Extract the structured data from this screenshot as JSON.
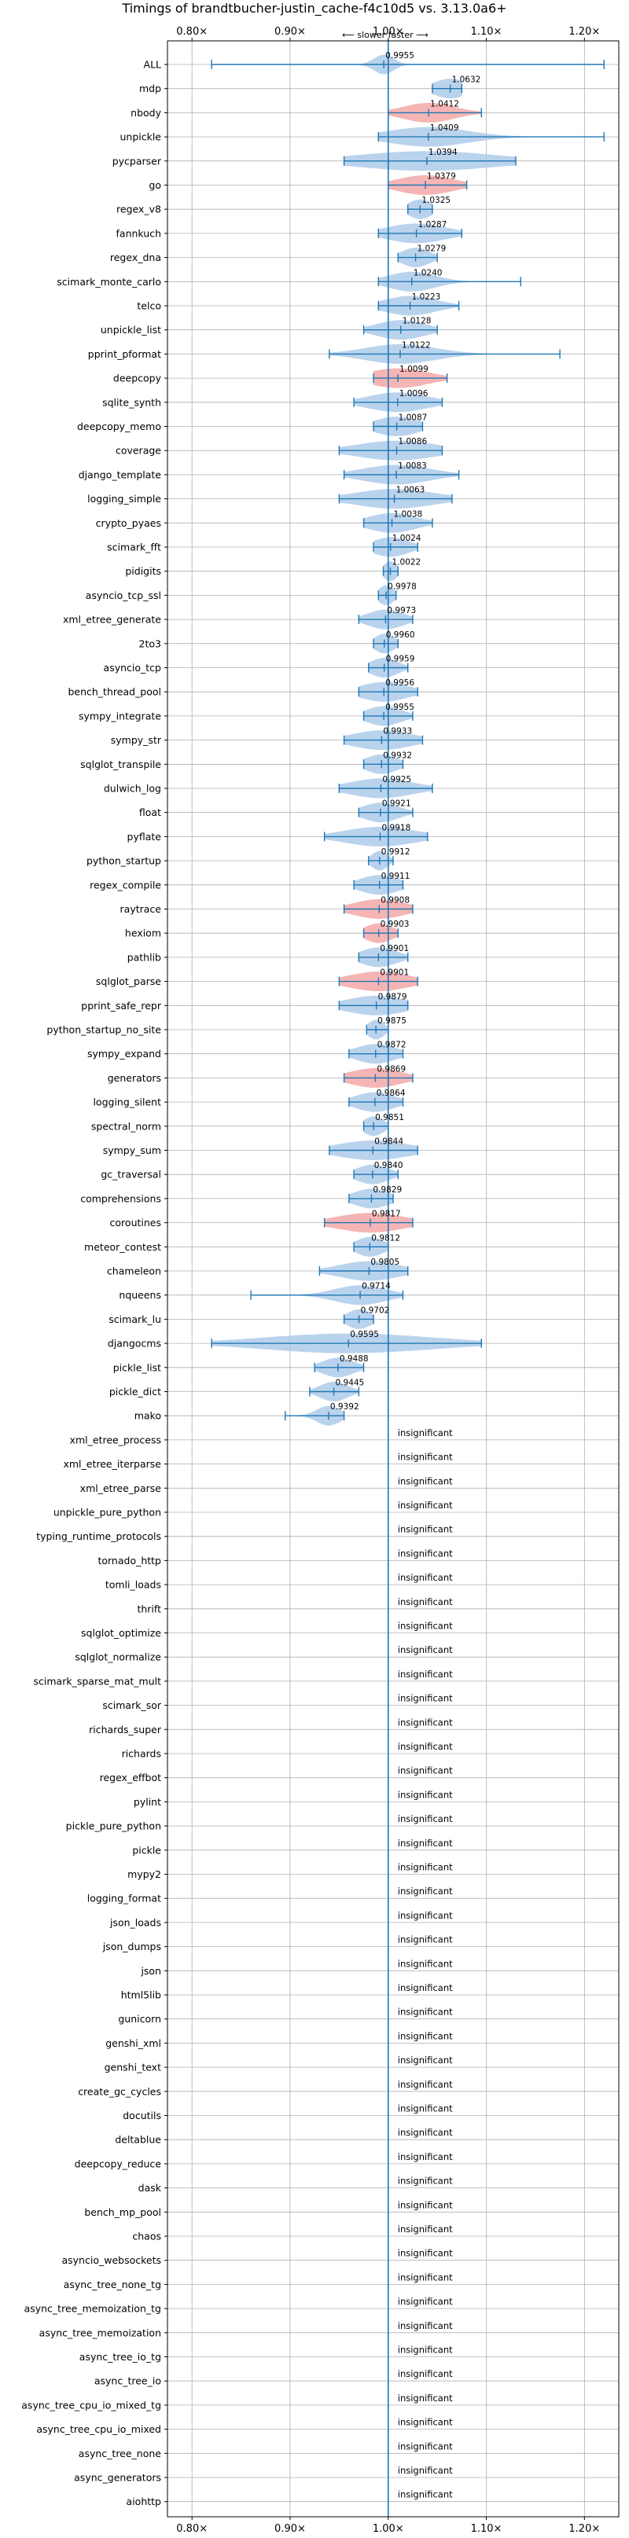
{
  "chart_data": {
    "type": "violin",
    "title": "Timings of brandtbucher-justin_cache-f4c10d5 vs. 3.13.0a6+",
    "direction_annotation": "⟵ slower    faster ⟶",
    "x_ticks": [
      0.8,
      0.9,
      1.0,
      1.1,
      1.2
    ],
    "x_tick_labels": [
      "0.80×",
      "0.90×",
      "1.00×",
      "1.10×",
      "1.20×"
    ],
    "xlim": [
      0.775,
      1.235
    ],
    "reference_line": 1.0,
    "insignificant_label": "insignificant",
    "colors": {
      "neutral": "#a9c8e8",
      "slower": "#f4a3a3",
      "line": "#1f77b4",
      "grid": "#b0b0b0"
    },
    "benchmarks": [
      {
        "name": "ALL",
        "mean": 0.9955,
        "label": "0.9955",
        "min": 0.82,
        "max": 1.22,
        "width": 0.01,
        "color": "neutral"
      },
      {
        "name": "mdp",
        "mean": 1.0632,
        "label": "1.0632",
        "min": 1.045,
        "max": 1.075,
        "width": 0.017,
        "color": "neutral"
      },
      {
        "name": "nbody",
        "mean": 1.0412,
        "label": "1.0412",
        "min": 1.0,
        "max": 1.095,
        "width": 0.026,
        "color": "slower"
      },
      {
        "name": "unpickle",
        "mean": 1.0409,
        "label": "1.0409",
        "min": 0.99,
        "max": 1.22,
        "width": 0.04,
        "color": "neutral"
      },
      {
        "name": "pycparser",
        "mean": 1.0394,
        "label": "1.0394",
        "min": 0.955,
        "max": 1.13,
        "width": 0.07,
        "color": "neutral"
      },
      {
        "name": "go",
        "mean": 1.0379,
        "label": "1.0379",
        "min": 1.0,
        "max": 1.08,
        "width": 0.028,
        "color": "slower"
      },
      {
        "name": "regex_v8",
        "mean": 1.0325,
        "label": "1.0325",
        "min": 1.02,
        "max": 1.045,
        "width": 0.012,
        "color": "neutral"
      },
      {
        "name": "fannkuch",
        "mean": 1.0287,
        "label": "1.0287",
        "min": 0.99,
        "max": 1.075,
        "width": 0.03,
        "color": "neutral"
      },
      {
        "name": "regex_dna",
        "mean": 1.0279,
        "label": "1.0279",
        "min": 1.01,
        "max": 1.05,
        "width": 0.014,
        "color": "neutral"
      },
      {
        "name": "scimark_monte_carlo",
        "mean": 1.024,
        "label": "1.0240",
        "min": 0.99,
        "max": 1.135,
        "width": 0.024,
        "color": "neutral"
      },
      {
        "name": "telco",
        "mean": 1.0223,
        "label": "1.0223",
        "min": 0.99,
        "max": 1.072,
        "width": 0.026,
        "color": "neutral"
      },
      {
        "name": "unpickle_list",
        "mean": 1.0128,
        "label": "1.0128",
        "min": 0.975,
        "max": 1.05,
        "width": 0.024,
        "color": "neutral"
      },
      {
        "name": "pprint_pformat",
        "mean": 1.0122,
        "label": "1.0122",
        "min": 0.94,
        "max": 1.175,
        "width": 0.036,
        "color": "neutral"
      },
      {
        "name": "deepcopy",
        "mean": 1.0099,
        "label": "1.0099",
        "min": 0.985,
        "max": 1.06,
        "width": 0.03,
        "color": "slower"
      },
      {
        "name": "sqlite_synth",
        "mean": 1.0096,
        "label": "1.0096",
        "min": 0.965,
        "max": 1.055,
        "width": 0.03,
        "color": "neutral"
      },
      {
        "name": "deepcopy_memo",
        "mean": 1.0087,
        "label": "1.0087",
        "min": 0.985,
        "max": 1.035,
        "width": 0.022,
        "color": "neutral"
      },
      {
        "name": "coverage",
        "mean": 1.0086,
        "label": "1.0086",
        "min": 0.95,
        "max": 1.055,
        "width": 0.04,
        "color": "neutral"
      },
      {
        "name": "django_template",
        "mean": 1.0083,
        "label": "1.0083",
        "min": 0.955,
        "max": 1.072,
        "width": 0.034,
        "color": "neutral"
      },
      {
        "name": "logging_simple",
        "mean": 1.0063,
        "label": "1.0063",
        "min": 0.95,
        "max": 1.065,
        "width": 0.04,
        "color": "neutral"
      },
      {
        "name": "crypto_pyaes",
        "mean": 1.0038,
        "label": "1.0038",
        "min": 0.975,
        "max": 1.045,
        "width": 0.024,
        "color": "neutral"
      },
      {
        "name": "scimark_fft",
        "mean": 1.0024,
        "label": "1.0024",
        "min": 0.985,
        "max": 1.03,
        "width": 0.018,
        "color": "neutral"
      },
      {
        "name": "pidigits",
        "mean": 1.0022,
        "label": "1.0022",
        "min": 0.995,
        "max": 1.01,
        "width": 0.007,
        "color": "neutral"
      },
      {
        "name": "asyncio_tcp_ssl",
        "mean": 0.9978,
        "label": "0.9978",
        "min": 0.99,
        "max": 1.008,
        "width": 0.008,
        "color": "neutral"
      },
      {
        "name": "xml_etree_generate",
        "mean": 0.9973,
        "label": "0.9973",
        "min": 0.97,
        "max": 1.025,
        "width": 0.018,
        "color": "neutral"
      },
      {
        "name": "2to3",
        "mean": 0.996,
        "label": "0.9960",
        "min": 0.985,
        "max": 1.01,
        "width": 0.01,
        "color": "neutral"
      },
      {
        "name": "asyncio_tcp",
        "mean": 0.9959,
        "label": "0.9959",
        "min": 0.98,
        "max": 1.02,
        "width": 0.014,
        "color": "neutral"
      },
      {
        "name": "bench_thread_pool",
        "mean": 0.9956,
        "label": "0.9956",
        "min": 0.97,
        "max": 1.03,
        "width": 0.024,
        "color": "neutral"
      },
      {
        "name": "sympy_integrate",
        "mean": 0.9955,
        "label": "0.9955",
        "min": 0.975,
        "max": 1.025,
        "width": 0.018,
        "color": "neutral"
      },
      {
        "name": "sympy_str",
        "mean": 0.9933,
        "label": "0.9933",
        "min": 0.955,
        "max": 1.035,
        "width": 0.03,
        "color": "neutral"
      },
      {
        "name": "sqlglot_transpile",
        "mean": 0.9932,
        "label": "0.9932",
        "min": 0.975,
        "max": 1.015,
        "width": 0.016,
        "color": "neutral"
      },
      {
        "name": "dulwich_log",
        "mean": 0.9925,
        "label": "0.9925",
        "min": 0.95,
        "max": 1.045,
        "width": 0.032,
        "color": "neutral"
      },
      {
        "name": "float",
        "mean": 0.9921,
        "label": "0.9921",
        "min": 0.97,
        "max": 1.025,
        "width": 0.018,
        "color": "neutral"
      },
      {
        "name": "pyflate",
        "mean": 0.9918,
        "label": "0.9918",
        "min": 0.935,
        "max": 1.04,
        "width": 0.036,
        "color": "neutral"
      },
      {
        "name": "python_startup",
        "mean": 0.9912,
        "label": "0.9912",
        "min": 0.98,
        "max": 1.005,
        "width": 0.008,
        "color": "neutral"
      },
      {
        "name": "regex_compile",
        "mean": 0.9911,
        "label": "0.9911",
        "min": 0.965,
        "max": 1.015,
        "width": 0.02,
        "color": "neutral"
      },
      {
        "name": "raytrace",
        "mean": 0.9908,
        "label": "0.9908",
        "min": 0.955,
        "max": 1.025,
        "width": 0.026,
        "color": "slower"
      },
      {
        "name": "hexiom",
        "mean": 0.9903,
        "label": "0.9903",
        "min": 0.975,
        "max": 1.01,
        "width": 0.014,
        "color": "slower"
      },
      {
        "name": "pathlib",
        "mean": 0.9901,
        "label": "0.9901",
        "min": 0.97,
        "max": 1.02,
        "width": 0.018,
        "color": "neutral"
      },
      {
        "name": "sqlglot_parse",
        "mean": 0.9901,
        "label": "0.9901",
        "min": 0.95,
        "max": 1.03,
        "width": 0.03,
        "color": "slower"
      },
      {
        "name": "pprint_safe_repr",
        "mean": 0.9879,
        "label": "0.9879",
        "min": 0.95,
        "max": 1.02,
        "width": 0.03,
        "color": "neutral"
      },
      {
        "name": "python_startup_no_site",
        "mean": 0.9875,
        "label": "0.9875",
        "min": 0.978,
        "max": 1.0,
        "width": 0.008,
        "color": "neutral"
      },
      {
        "name": "sympy_expand",
        "mean": 0.9872,
        "label": "0.9872",
        "min": 0.96,
        "max": 1.015,
        "width": 0.02,
        "color": "neutral"
      },
      {
        "name": "generators",
        "mean": 0.9869,
        "label": "0.9869",
        "min": 0.955,
        "max": 1.025,
        "width": 0.026,
        "color": "slower"
      },
      {
        "name": "logging_silent",
        "mean": 0.9864,
        "label": "0.9864",
        "min": 0.96,
        "max": 1.015,
        "width": 0.02,
        "color": "neutral"
      },
      {
        "name": "spectral_norm",
        "mean": 0.9851,
        "label": "0.9851",
        "min": 0.975,
        "max": 1.0,
        "width": 0.01,
        "color": "neutral"
      },
      {
        "name": "sympy_sum",
        "mean": 0.9844,
        "label": "0.9844",
        "min": 0.94,
        "max": 1.03,
        "width": 0.036,
        "color": "neutral"
      },
      {
        "name": "gc_traversal",
        "mean": 0.984,
        "label": "0.9840",
        "min": 0.965,
        "max": 1.01,
        "width": 0.016,
        "color": "neutral"
      },
      {
        "name": "comprehensions",
        "mean": 0.9829,
        "label": "0.9829",
        "min": 0.96,
        "max": 1.005,
        "width": 0.018,
        "color": "neutral"
      },
      {
        "name": "coroutines",
        "mean": 0.9817,
        "label": "0.9817",
        "min": 0.935,
        "max": 1.025,
        "width": 0.034,
        "color": "slower"
      },
      {
        "name": "meteor_contest",
        "mean": 0.9812,
        "label": "0.9812",
        "min": 0.965,
        "max": 1.0,
        "width": 0.014,
        "color": "neutral"
      },
      {
        "name": "chameleon",
        "mean": 0.9805,
        "label": "0.9805",
        "min": 0.93,
        "max": 1.02,
        "width": 0.03,
        "color": "neutral"
      },
      {
        "name": "nqueens",
        "mean": 0.9714,
        "label": "0.9714",
        "min": 0.86,
        "max": 1.015,
        "width": 0.026,
        "color": "neutral"
      },
      {
        "name": "scimark_lu",
        "mean": 0.9702,
        "label": "0.9702",
        "min": 0.955,
        "max": 0.985,
        "width": 0.012,
        "color": "neutral"
      },
      {
        "name": "djangocms",
        "mean": 0.9595,
        "label": "0.9595",
        "min": 0.82,
        "max": 1.095,
        "width": 0.085,
        "color": "neutral"
      },
      {
        "name": "pickle_list",
        "mean": 0.9488,
        "label": "0.9488",
        "min": 0.925,
        "max": 0.975,
        "width": 0.016,
        "color": "neutral"
      },
      {
        "name": "pickle_dict",
        "mean": 0.9445,
        "label": "0.9445",
        "min": 0.92,
        "max": 0.97,
        "width": 0.014,
        "color": "neutral"
      },
      {
        "name": "mako",
        "mean": 0.9392,
        "label": "0.9392",
        "min": 0.895,
        "max": 0.955,
        "width": 0.012,
        "color": "neutral"
      },
      {
        "name": "xml_etree_process",
        "insignificant": true
      },
      {
        "name": "xml_etree_iterparse",
        "insignificant": true
      },
      {
        "name": "xml_etree_parse",
        "insignificant": true
      },
      {
        "name": "unpickle_pure_python",
        "insignificant": true
      },
      {
        "name": "typing_runtime_protocols",
        "insignificant": true
      },
      {
        "name": "tornado_http",
        "insignificant": true
      },
      {
        "name": "tomli_loads",
        "insignificant": true
      },
      {
        "name": "thrift",
        "insignificant": true
      },
      {
        "name": "sqlglot_optimize",
        "insignificant": true
      },
      {
        "name": "sqlglot_normalize",
        "insignificant": true
      },
      {
        "name": "scimark_sparse_mat_mult",
        "insignificant": true
      },
      {
        "name": "scimark_sor",
        "insignificant": true
      },
      {
        "name": "richards_super",
        "insignificant": true
      },
      {
        "name": "richards",
        "insignificant": true
      },
      {
        "name": "regex_effbot",
        "insignificant": true
      },
      {
        "name": "pylint",
        "insignificant": true
      },
      {
        "name": "pickle_pure_python",
        "insignificant": true
      },
      {
        "name": "pickle",
        "insignificant": true
      },
      {
        "name": "mypy2",
        "insignificant": true
      },
      {
        "name": "logging_format",
        "insignificant": true
      },
      {
        "name": "json_loads",
        "insignificant": true
      },
      {
        "name": "json_dumps",
        "insignificant": true
      },
      {
        "name": "json",
        "insignificant": true
      },
      {
        "name": "html5lib",
        "insignificant": true
      },
      {
        "name": "gunicorn",
        "insignificant": true
      },
      {
        "name": "genshi_xml",
        "insignificant": true
      },
      {
        "name": "genshi_text",
        "insignificant": true
      },
      {
        "name": "create_gc_cycles",
        "insignificant": true
      },
      {
        "name": "docutils",
        "insignificant": true
      },
      {
        "name": "deltablue",
        "insignificant": true
      },
      {
        "name": "deepcopy_reduce",
        "insignificant": true
      },
      {
        "name": "dask",
        "insignificant": true
      },
      {
        "name": "bench_mp_pool",
        "insignificant": true
      },
      {
        "name": "chaos",
        "insignificant": true
      },
      {
        "name": "asyncio_websockets",
        "insignificant": true
      },
      {
        "name": "async_tree_none_tg",
        "insignificant": true
      },
      {
        "name": "async_tree_memoization_tg",
        "insignificant": true
      },
      {
        "name": "async_tree_memoization",
        "insignificant": true
      },
      {
        "name": "async_tree_io_tg",
        "insignificant": true
      },
      {
        "name": "async_tree_io",
        "insignificant": true
      },
      {
        "name": "async_tree_cpu_io_mixed_tg",
        "insignificant": true
      },
      {
        "name": "async_tree_cpu_io_mixed",
        "insignificant": true
      },
      {
        "name": "async_tree_none",
        "insignificant": true
      },
      {
        "name": "async_generators",
        "insignificant": true
      },
      {
        "name": "aiohttp",
        "insignificant": true
      }
    ]
  }
}
